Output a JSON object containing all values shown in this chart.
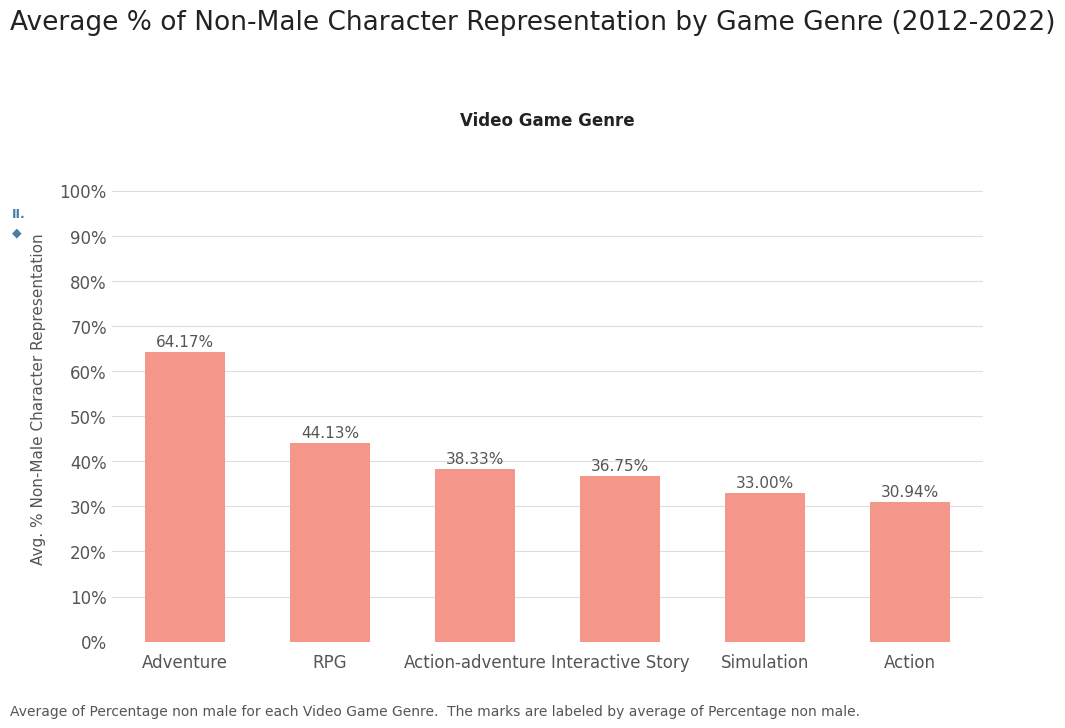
{
  "title": "Average % of Non-Male Character Representation by Game Genre (2012-2022)",
  "xlabel": "Video Game Genre",
  "ylabel": "Avg. % Non-Male Character Representation",
  "caption": "Average of Percentage non male for each Video Game Genre.  The marks are labeled by average of Percentage non male.",
  "categories": [
    "Adventure",
    "RPG",
    "Action-adventure",
    "Interactive Story",
    "Simulation",
    "Action"
  ],
  "values": [
    0.6417,
    0.4413,
    0.3833,
    0.3675,
    0.33,
    0.3094
  ],
  "bar_labels": [
    "64.17%",
    "44.13%",
    "38.33%",
    "36.75%",
    "33.00%",
    "30.94%"
  ],
  "bar_color": "#F4968A",
  "background_color": "#FFFFFF",
  "yticks": [
    0.0,
    0.1,
    0.2,
    0.3,
    0.4,
    0.5,
    0.6,
    0.7,
    0.8,
    0.9,
    1.0
  ],
  "ytick_labels": [
    "0%",
    "10%",
    "20%",
    "30%",
    "40%",
    "50%",
    "60%",
    "70%",
    "80%",
    "90%",
    "100%"
  ],
  "ylim": [
    0,
    1.08
  ],
  "title_fontsize": 19,
  "xlabel_fontsize": 12,
  "ylabel_fontsize": 11,
  "tick_fontsize": 12,
  "label_fontsize": 11,
  "caption_fontsize": 10,
  "grid_color": "#DDDDDD",
  "text_color": "#555555",
  "icon_color": "#4A7FA5"
}
